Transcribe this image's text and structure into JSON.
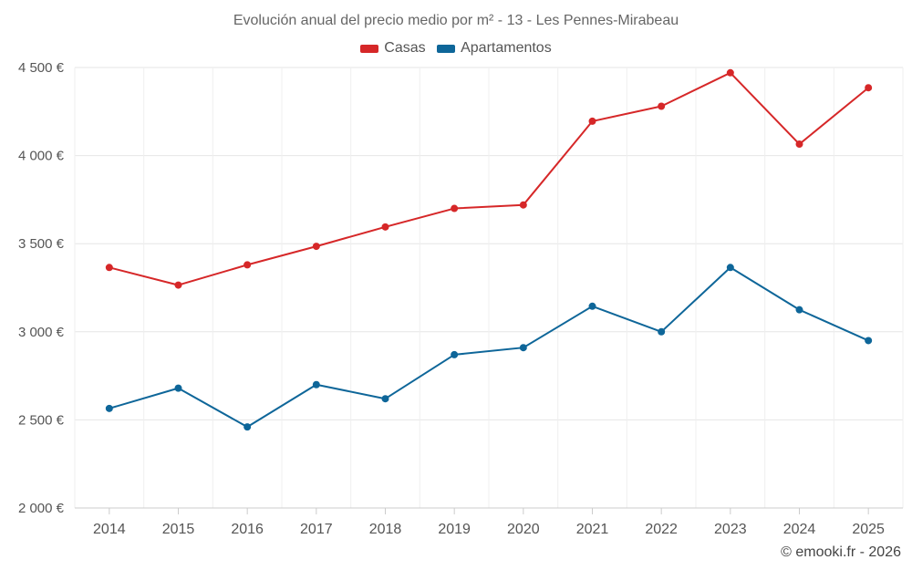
{
  "chart_data": {
    "type": "line",
    "title": "Evolución anual del precio medio por m² - 13 - Les Pennes-Mirabeau",
    "categories": [
      "2014",
      "2015",
      "2016",
      "2017",
      "2018",
      "2019",
      "2020",
      "2021",
      "2022",
      "2023",
      "2024",
      "2025"
    ],
    "series": [
      {
        "name": "Casas",
        "color": "#d62728",
        "values": [
          3365,
          3265,
          3380,
          3485,
          3595,
          3700,
          3720,
          4195,
          4280,
          4470,
          4065,
          4385
        ]
      },
      {
        "name": "Apartamentos",
        "color": "#0e6699",
        "values": [
          2565,
          2680,
          2460,
          2700,
          2620,
          2870,
          2910,
          3145,
          3000,
          3365,
          3125,
          2950
        ]
      }
    ],
    "ylim": [
      2000,
      4500
    ],
    "yticks": [
      2000,
      2500,
      3000,
      3500,
      4000,
      4500
    ],
    "ytick_labels": [
      "2 000 €",
      "2 500 €",
      "3 000 €",
      "3 500 €",
      "4 000 €",
      "4 500 €"
    ],
    "legend_position": "top-center",
    "grid": true
  },
  "credit": "© emooki.fr - 2026"
}
